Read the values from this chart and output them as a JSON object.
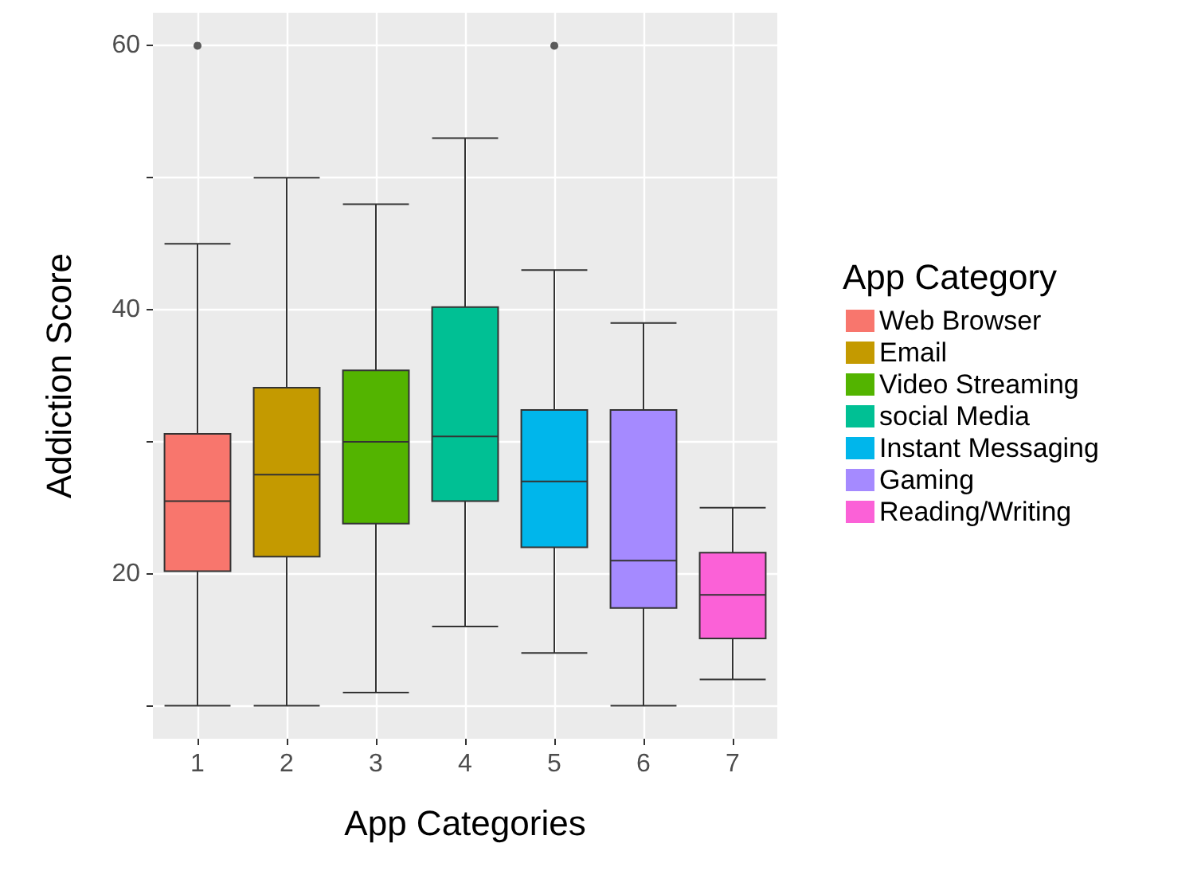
{
  "chart_data": {
    "type": "box",
    "xlabel": "App Categories",
    "ylabel": "Addiction Score",
    "legend_title": "App Category",
    "categories": [
      "1",
      "2",
      "3",
      "4",
      "5",
      "6",
      "7"
    ],
    "series": [
      {
        "name": "Web Browser",
        "color": "#f8766d",
        "x": [
          "1"
        ],
        "boxes": [
          {
            "low": 10,
            "q1": 20.2,
            "median": 25.5,
            "q3": 30.6,
            "high": 45,
            "outliers": [
              60
            ]
          }
        ]
      },
      {
        "name": "Email",
        "color": "#c49a00",
        "x": [
          "2"
        ],
        "boxes": [
          {
            "low": 10,
            "q1": 21.3,
            "median": 27.5,
            "q3": 34.1,
            "high": 50
          }
        ]
      },
      {
        "name": "Video Streaming",
        "color": "#53b400",
        "x": [
          "3"
        ],
        "boxes": [
          {
            "low": 11,
            "q1": 23.8,
            "median": 30,
            "q3": 35.4,
            "high": 48
          }
        ]
      },
      {
        "name": "social Media",
        "color": "#00c094",
        "x": [
          "4"
        ],
        "boxes": [
          {
            "low": 16,
            "q1": 25.5,
            "median": 30.4,
            "q3": 40.2,
            "high": 53
          }
        ]
      },
      {
        "name": "Instant Messaging",
        "color": "#00b6eb",
        "x": [
          "5"
        ],
        "boxes": [
          {
            "low": 14,
            "q1": 22,
            "median": 27,
            "q3": 32.4,
            "high": 43,
            "outliers": [
              60
            ]
          }
        ]
      },
      {
        "name": "Gaming",
        "color": "#a58aff",
        "x": [
          "6"
        ],
        "boxes": [
          {
            "low": 10,
            "q1": 17.4,
            "median": 21,
            "q3": 32.4,
            "high": 39
          }
        ]
      },
      {
        "name": "Reading/Writing",
        "color": "#fb61d7",
        "x": [
          "7"
        ],
        "boxes": [
          {
            "low": 12,
            "q1": 15.1,
            "median": 18.4,
            "q3": 21.6,
            "high": 25
          }
        ]
      }
    ],
    "ylim": [
      7.5,
      62.5
    ],
    "yticks": [
      {
        "value": 10,
        "label": null
      },
      20,
      {
        "value": 30,
        "label": null
      },
      40,
      {
        "value": 50,
        "label": null
      },
      60
    ],
    "grid": true,
    "legend": "right"
  }
}
